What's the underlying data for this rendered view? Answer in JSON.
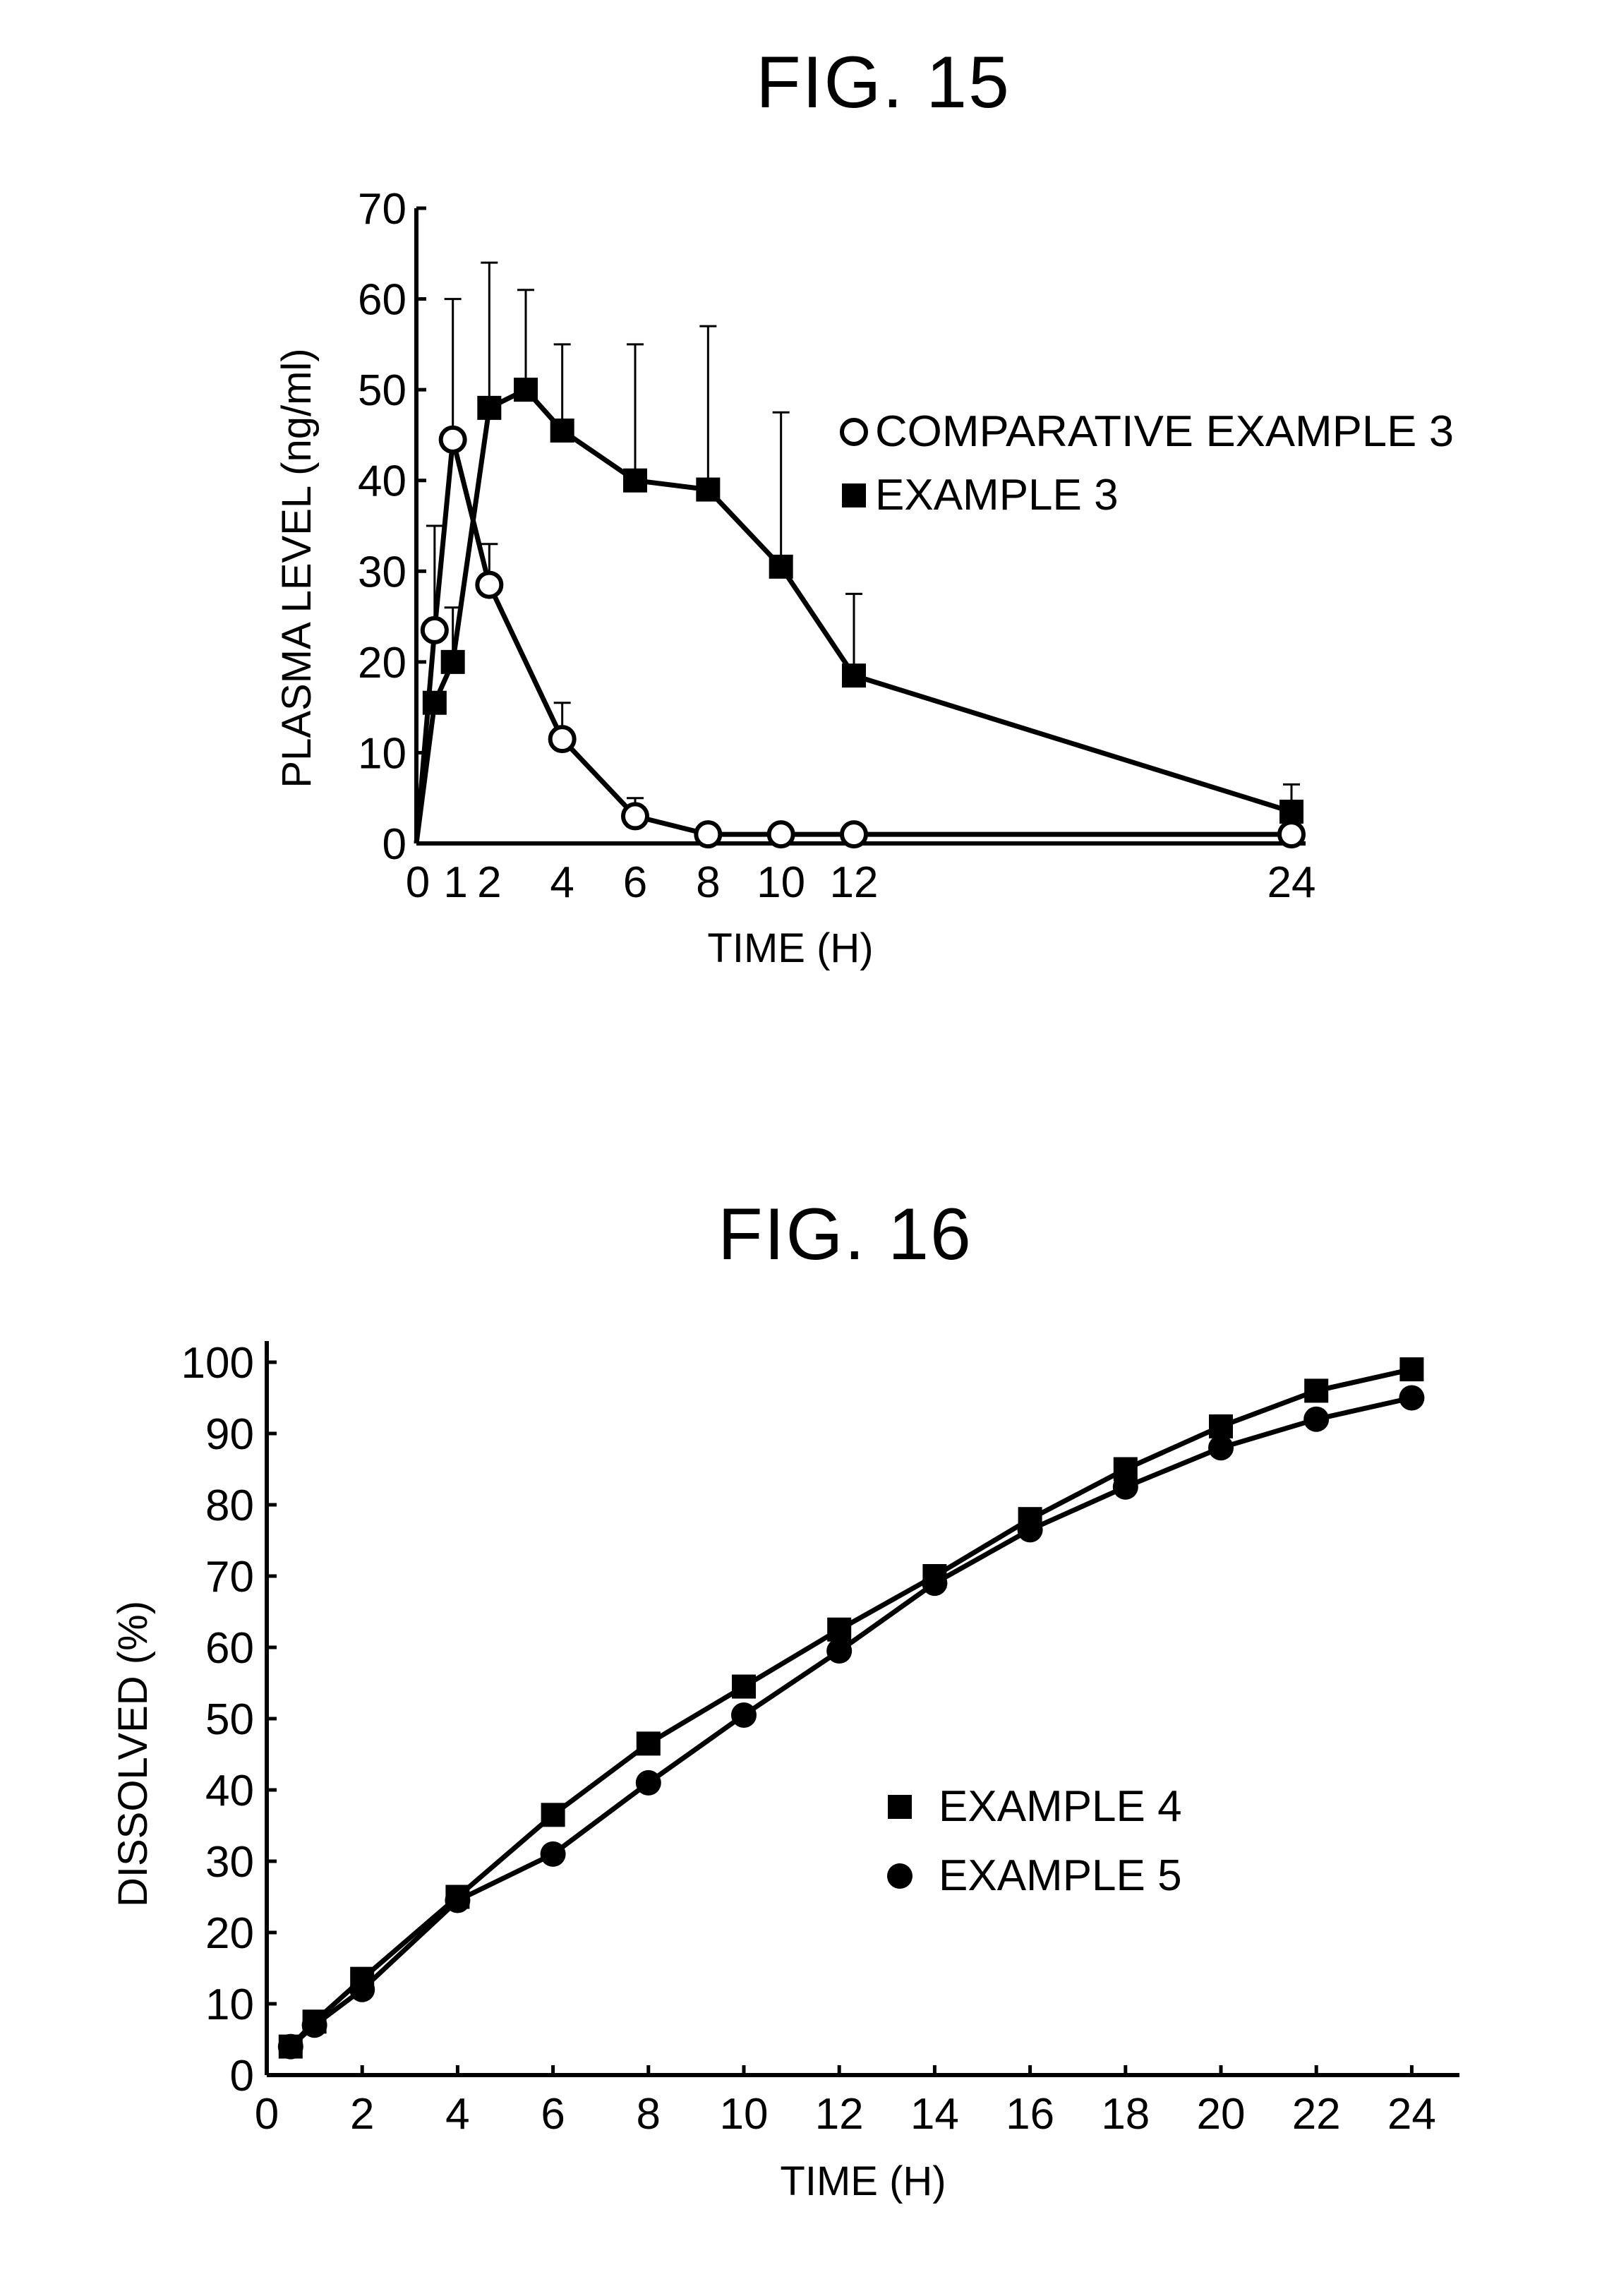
{
  "chart_data": [
    {
      "type": "line",
      "title": "FIG. 15",
      "xlabel": "TIME (H)",
      "ylabel": "PLASMA LEVEL (ng/ml)",
      "xlim": [
        0,
        24
      ],
      "ylim": [
        0,
        70
      ],
      "x_ticks": [
        0,
        1,
        2,
        4,
        6,
        8,
        10,
        12,
        24
      ],
      "x_tick_labels": [
        "0",
        "1",
        "2",
        "4",
        "6",
        "8",
        "10",
        "12",
        "24"
      ],
      "y_ticks": [
        0,
        10,
        20,
        30,
        40,
        50,
        60,
        70
      ],
      "y_tick_labels": [
        "0",
        "10",
        "20",
        "30",
        "40",
        "50",
        "60",
        "70"
      ],
      "legend_position": "right",
      "series": [
        {
          "name": "COMPARATIVE EXAMPLE 3",
          "marker": "open-circle",
          "points": [
            {
              "x": 0,
              "y": 0
            },
            {
              "x": 0.5,
              "y": 23.5,
              "err": 35
            },
            {
              "x": 1,
              "y": 44.5,
              "err": 60
            },
            {
              "x": 2,
              "y": 28.5,
              "err": 33
            },
            {
              "x": 4,
              "y": 11.5,
              "err": 15.5
            },
            {
              "x": 6,
              "y": 3,
              "err": 5
            },
            {
              "x": 8,
              "y": 1,
              "err": 2
            },
            {
              "x": 10,
              "y": 1,
              "err": 2
            },
            {
              "x": 12,
              "y": 1,
              "err": 2
            },
            {
              "x": 24,
              "y": 1
            }
          ]
        },
        {
          "name": "EXAMPLE 3",
          "marker": "filled-square",
          "points": [
            {
              "x": 0,
              "y": 0
            },
            {
              "x": 0.5,
              "y": 15.5
            },
            {
              "x": 1,
              "y": 20,
              "err": 26
            },
            {
              "x": 2,
              "y": 48,
              "err": 64
            },
            {
              "x": 3,
              "y": 50,
              "err": 61
            },
            {
              "x": 4,
              "y": 45.5,
              "err": 55
            },
            {
              "x": 6,
              "y": 40,
              "err": 55
            },
            {
              "x": 8,
              "y": 39,
              "err": 57
            },
            {
              "x": 10,
              "y": 30.5,
              "err": 47.5
            },
            {
              "x": 12,
              "y": 18.5,
              "err": 27.5
            },
            {
              "x": 24,
              "y": 3.5,
              "err": 6.5
            }
          ]
        }
      ]
    },
    {
      "type": "line",
      "title": "FIG. 16",
      "xlabel": "TIME (H)",
      "ylabel": "DISSOLVED (%)",
      "xlim": [
        0,
        25
      ],
      "ylim": [
        0,
        100
      ],
      "x_ticks": [
        0,
        2,
        4,
        6,
        8,
        10,
        12,
        14,
        16,
        18,
        20,
        22,
        24
      ],
      "x_tick_labels": [
        "0",
        "2",
        "4",
        "6",
        "8",
        "10",
        "12",
        "14",
        "16",
        "18",
        "20",
        "22",
        "24"
      ],
      "y_ticks": [
        0,
        10,
        20,
        30,
        40,
        50,
        60,
        70,
        80,
        90,
        100
      ],
      "y_tick_labels": [
        "0",
        "10",
        "20",
        "30",
        "40",
        "50",
        "60",
        "70",
        "80",
        "90",
        "100"
      ],
      "legend_position": "center-right",
      "series": [
        {
          "name": "EXAMPLE 4",
          "marker": "filled-square",
          "points": [
            {
              "x": 0.5,
              "y": 4
            },
            {
              "x": 1,
              "y": 7.5
            },
            {
              "x": 2,
              "y": 13.5
            },
            {
              "x": 4,
              "y": 25
            },
            {
              "x": 6,
              "y": 36.5
            },
            {
              "x": 8,
              "y": 46.5
            },
            {
              "x": 10,
              "y": 54.5
            },
            {
              "x": 12,
              "y": 62.5
            },
            {
              "x": 14,
              "y": 70
            },
            {
              "x": 16,
              "y": 78
            },
            {
              "x": 18,
              "y": 85
            },
            {
              "x": 20,
              "y": 91
            },
            {
              "x": 22,
              "y": 96
            },
            {
              "x": 24,
              "y": 99
            }
          ]
        },
        {
          "name": "EXAMPLE 5",
          "marker": "filled-circle",
          "points": [
            {
              "x": 0.5,
              "y": 4
            },
            {
              "x": 1,
              "y": 7
            },
            {
              "x": 2,
              "y": 12
            },
            {
              "x": 4,
              "y": 24.5
            },
            {
              "x": 6,
              "y": 31
            },
            {
              "x": 8,
              "y": 41
            },
            {
              "x": 10,
              "y": 50.5
            },
            {
              "x": 12,
              "y": 59.5
            },
            {
              "x": 14,
              "y": 69
            },
            {
              "x": 16,
              "y": 76.5
            },
            {
              "x": 18,
              "y": 82.5
            },
            {
              "x": 20,
              "y": 88
            },
            {
              "x": 22,
              "y": 92
            },
            {
              "x": 24,
              "y": 95
            }
          ]
        }
      ]
    }
  ]
}
